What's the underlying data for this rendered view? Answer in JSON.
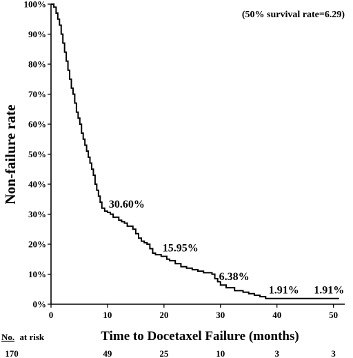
{
  "chart_data": {
    "type": "line",
    "title": "",
    "note": "(50% survival rate=6.29)",
    "xlabel": "Time to Docetaxel Failure (months)",
    "ylabel": "Non-failure rate",
    "xlim": [
      0,
      52
    ],
    "ylim": [
      0,
      100
    ],
    "x_ticks": [
      "0",
      "10",
      "20",
      "30",
      "40",
      "50"
    ],
    "y_ticks": [
      "0%",
      "10%",
      "20%",
      "30%",
      "40%",
      "50%",
      "60%",
      "70%",
      "80%",
      "90%",
      "100%"
    ],
    "grid": false,
    "series": [
      {
        "x": [
          0,
          0.5,
          0.9,
          1.2,
          1.5,
          1.8,
          2.1,
          2.4,
          2.7,
          3.0,
          3.3,
          3.6,
          3.9,
          4.2,
          4.5,
          4.8,
          5.1,
          5.4,
          5.7,
          6.0,
          6.3,
          6.6,
          6.9,
          7.2,
          7.5,
          7.8,
          8.1,
          8.4,
          8.7,
          9.0,
          9.5,
          10.0,
          10.5,
          11.0,
          12.0,
          12.5,
          13.0,
          13.5,
          14.0,
          14.5,
          15.0,
          15.5,
          16.0,
          16.5,
          17.0,
          17.5,
          18.0,
          18.5,
          19.5,
          20.5,
          21.0,
          22.0,
          23.0,
          24.0,
          25.0,
          26.0,
          27.0,
          28.5,
          29.0,
          29.5,
          30.0,
          31.0,
          32.5,
          34.0,
          35.0,
          36.0,
          37.0,
          38.0,
          41.0,
          51.0
        ],
        "y": [
          100,
          99,
          97,
          95,
          93,
          90,
          87,
          84,
          81,
          78,
          75,
          72,
          70,
          67,
          64,
          62,
          60,
          57,
          55,
          53,
          51,
          49,
          47,
          45,
          43,
          40,
          38,
          36,
          34,
          32,
          31,
          30.6,
          30,
          29,
          28,
          27.5,
          27,
          26,
          26,
          25,
          23.5,
          22,
          21,
          20.5,
          20,
          18.5,
          17,
          16.5,
          15.95,
          15,
          14.5,
          13.5,
          12.5,
          12,
          11.5,
          11,
          10.5,
          10,
          8.5,
          7.5,
          6.38,
          5.5,
          4.5,
          4,
          3.5,
          3,
          2.5,
          1.91,
          1.91,
          1.91
        ]
      }
    ],
    "annotations": [
      {
        "text": "30.60%",
        "x": 10,
        "y": 30.6
      },
      {
        "text": "15.95%",
        "x": 19.5,
        "y": 15.95
      },
      {
        "text": "6.38%",
        "x": 29.5,
        "y": 6.38
      },
      {
        "text": "1.91%",
        "x": 38.3,
        "y": 1.91
      },
      {
        "text": "1.91%",
        "x": 46.3,
        "y": 1.91
      }
    ],
    "risk_table": {
      "label_underlined": "No.",
      "label_rest": "at risk",
      "counts": [
        "170",
        "49",
        "25",
        "10",
        "3",
        "3"
      ]
    }
  }
}
